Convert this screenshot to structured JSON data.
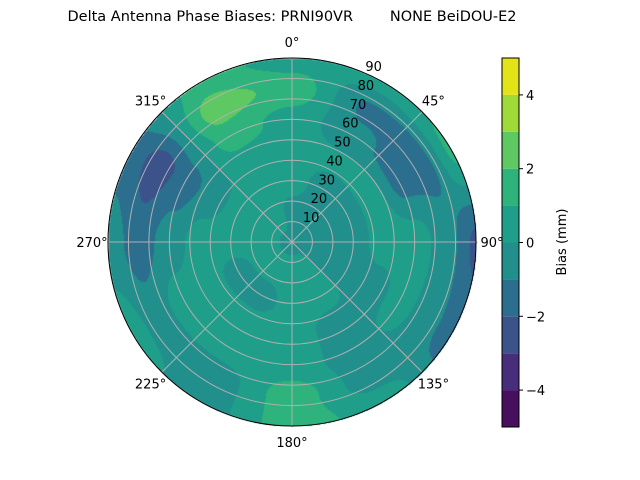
{
  "chart_data": {
    "type": "contour",
    "projection": "polar",
    "title": "Delta Antenna Phase Biases: PRNI90VR        NONE BeiDOU-E2",
    "theta_direction": "clockwise",
    "theta_zero": "top",
    "theta_tick_labels": [
      "0°",
      "45°",
      "90°",
      "135°",
      "180°",
      "225°",
      "270°",
      "315°"
    ],
    "theta_ticks": [
      0,
      45,
      90,
      135,
      180,
      225,
      270,
      315
    ],
    "r_ticks": [
      10,
      20,
      30,
      40,
      50,
      60,
      70,
      80,
      90
    ],
    "r_tick_labels": [
      "10",
      "20",
      "30",
      "40",
      "50",
      "60",
      "70",
      "80",
      "90"
    ],
    "rlim": [
      0,
      90
    ],
    "grid": true,
    "levels": [
      -5,
      -4,
      -3,
      -2,
      -1,
      0,
      1,
      2,
      3,
      4,
      5
    ],
    "level_colors": [
      "#46105f",
      "#472d7b",
      "#3b528b",
      "#2c6e8e",
      "#21908d",
      "#1f9e89",
      "#2eb37c",
      "#5ec962",
      "#a0da39",
      "#e2e418"
    ],
    "colorbar": {
      "label": "Bias (mm)",
      "ticks": [
        -4,
        -2,
        0,
        2,
        4
      ],
      "tick_labels": [
        "−4",
        "−2",
        "0",
        "2",
        "4"
      ],
      "range": [
        -5,
        5
      ]
    },
    "grid_azimuth": [
      0,
      30,
      60,
      90,
      120,
      150,
      180,
      210,
      240,
      270,
      300,
      330
    ],
    "grid_r": [
      0,
      15,
      30,
      45,
      60,
      75,
      90
    ],
    "center_value": -0.3,
    "values": [
      [
        -0.5,
        0.5,
        0.5,
        0.6,
        1.6,
        0.5
      ],
      [
        -0.5,
        -0.5,
        0.3,
        -0.8,
        -1.2,
        0.5
      ],
      [
        -0.5,
        -0.5,
        0.5,
        -1.4,
        -1.3,
        1.2
      ],
      [
        -0.5,
        -0.5,
        0.5,
        0.6,
        -0.5,
        -2.2
      ],
      [
        -0.5,
        -0.5,
        -0.5,
        0.5,
        -0.6,
        -1.5
      ],
      [
        0.5,
        0.5,
        -0.5,
        -0.5,
        -0.5,
        0.5
      ],
      [
        0.5,
        0.5,
        0.5,
        0.5,
        1.5,
        1.5
      ],
      [
        0.5,
        -0.5,
        0.5,
        0.5,
        -0.5,
        -0.5
      ],
      [
        0.5,
        -0.5,
        0.5,
        0.5,
        -0.5,
        0.5
      ],
      [
        0.5,
        0.5,
        0.5,
        -0.5,
        -1.5,
        -0.5
      ],
      [
        0.5,
        0.5,
        -0.5,
        -1.5,
        -2.5,
        -1.5
      ],
      [
        0.5,
        0.5,
        0.5,
        1.5,
        2.5,
        1.5
      ]
    ]
  }
}
